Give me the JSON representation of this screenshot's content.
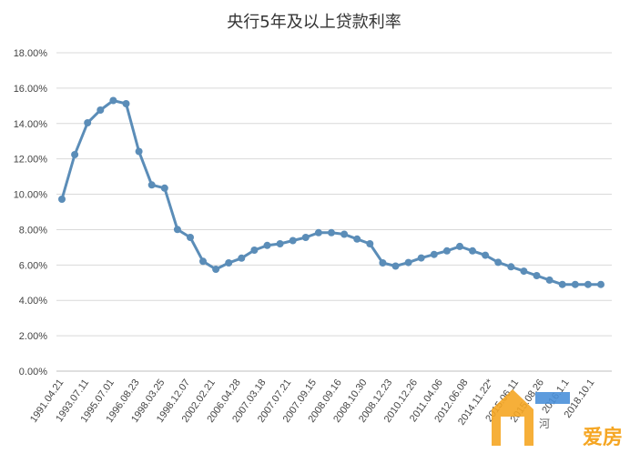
{
  "chart_data": {
    "type": "line",
    "title": "央行5年及以上贷款利率",
    "ylim": [
      0,
      18
    ],
    "ytick_labels": [
      "0.00%",
      "2.00%",
      "4.00%",
      "6.00%",
      "8.00%",
      "10.00%",
      "12.00%",
      "14.00%",
      "16.00%",
      "18.00%"
    ],
    "grid": true,
    "legend": "none",
    "color": "#5B8DB8",
    "x_labels": [
      "1991.04.21",
      "1993.07.11",
      "1995.07.01",
      "1996.08.23",
      "1998.03.25",
      "1998.12.07",
      "2002.02.21",
      "2006.04.28",
      "2007.03.18",
      "2007.07.21",
      "2007.09.15",
      "2008.09.16",
      "2008.10.30",
      "2008.12.23",
      "2010.12.26",
      "2011.04.06",
      "2012.06.08",
      "2014.11.22*",
      "2015.06.11",
      "2015.08.26",
      "2016.1.1",
      "2018.10.1"
    ],
    "values": [
      9.72,
      12.24,
      14.04,
      14.76,
      15.3,
      15.12,
      12.42,
      10.53,
      10.35,
      8.01,
      7.56,
      6.21,
      5.76,
      6.12,
      6.39,
      6.84,
      7.11,
      7.2,
      7.38,
      7.56,
      7.83,
      7.83,
      7.74,
      7.47,
      7.2,
      6.12,
      5.94,
      6.14,
      6.4,
      6.6,
      6.8,
      7.05,
      6.8,
      6.55,
      6.15,
      5.9,
      5.65,
      5.4,
      5.15,
      4.9,
      4.9,
      4.9,
      4.9
    ]
  },
  "watermark": {
    "text": "河",
    "logo_text": "爱房",
    "colors": {
      "orange": "#F5A623",
      "blue": "#4A90D9"
    }
  }
}
